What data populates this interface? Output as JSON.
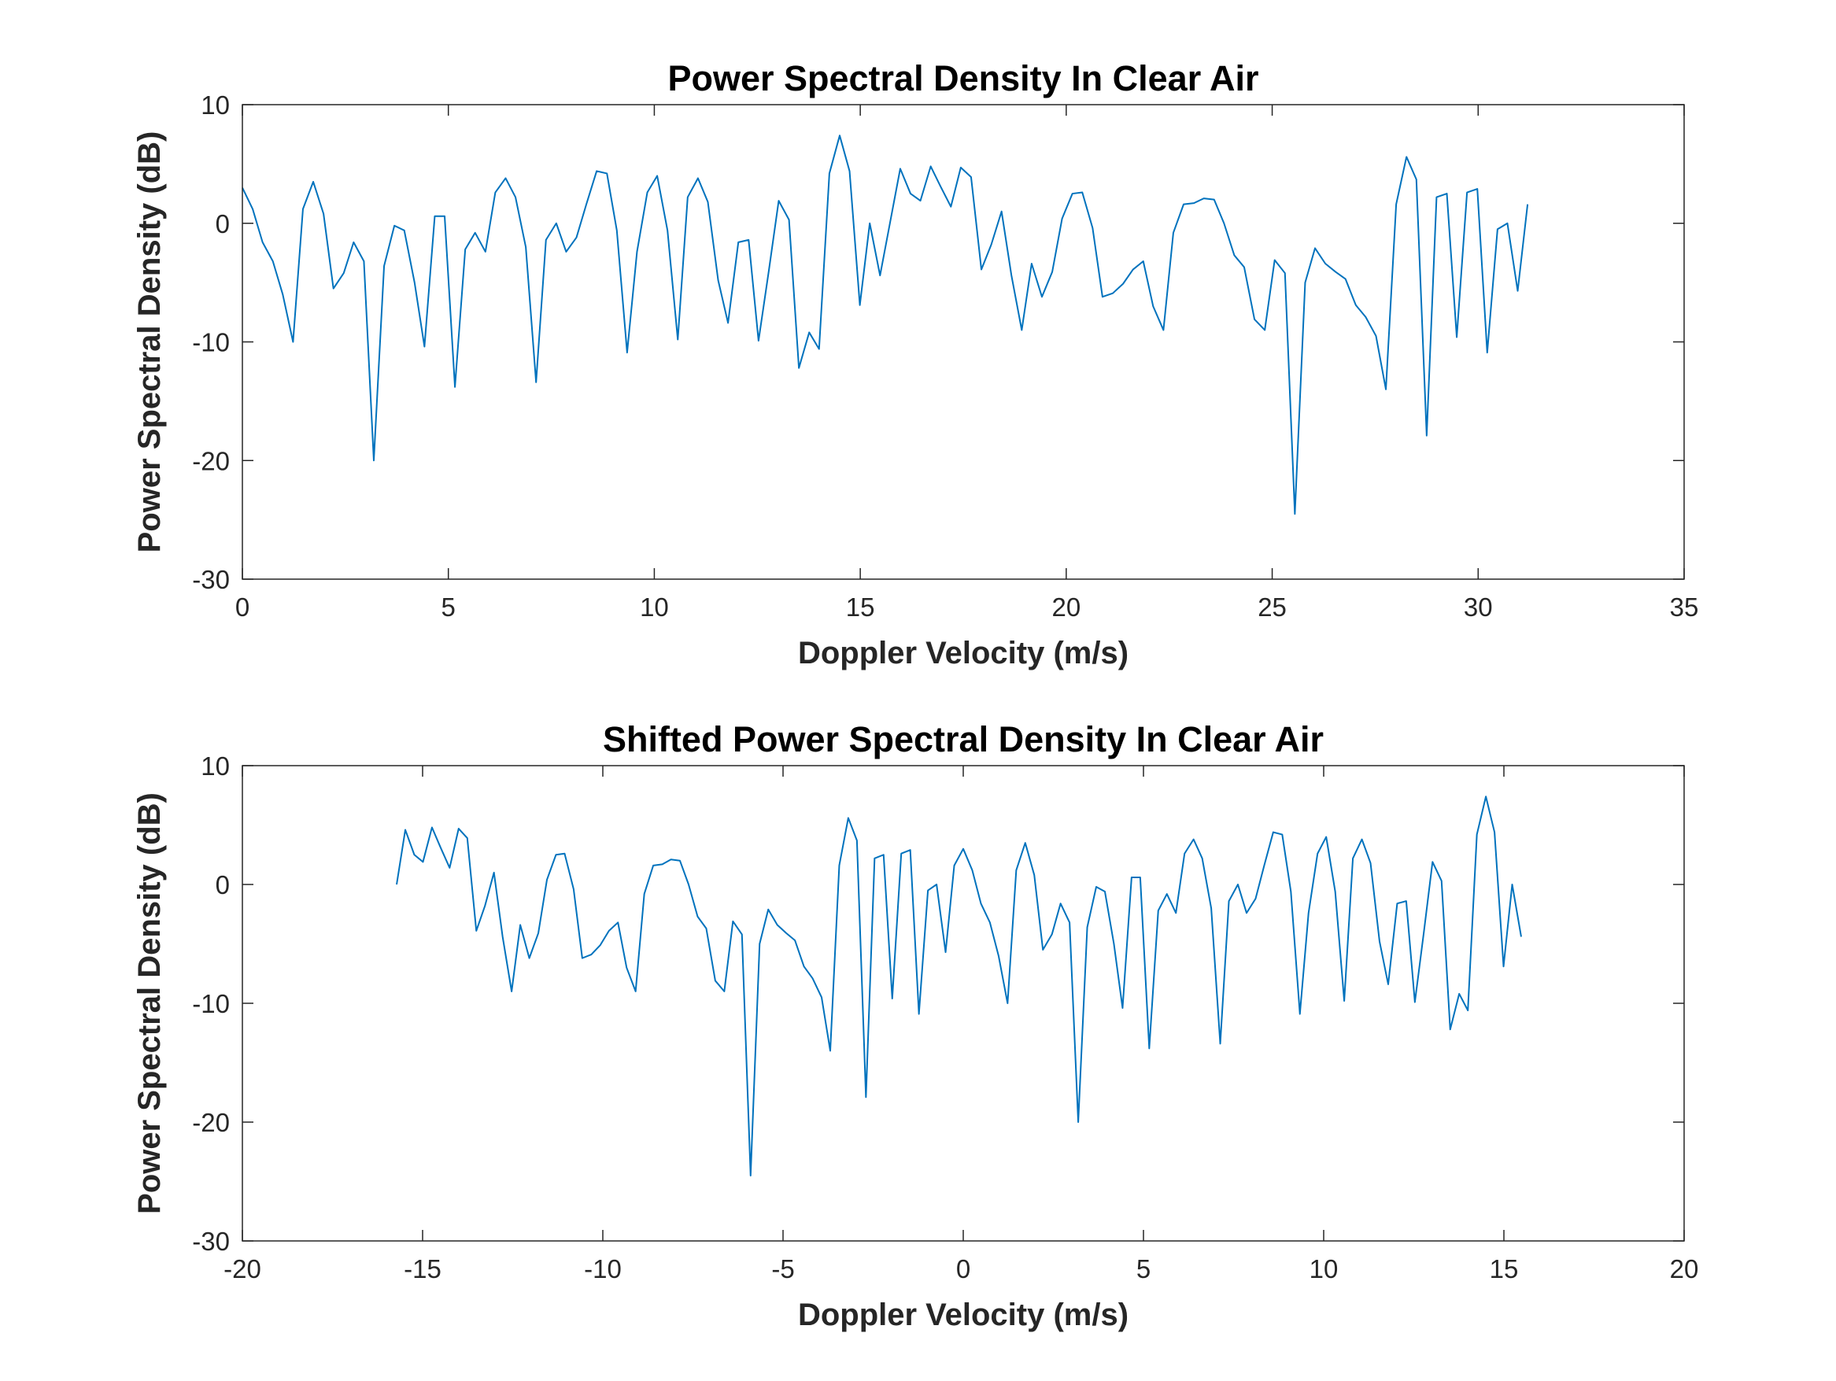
{
  "chart_data": [
    {
      "type": "line",
      "title": "Power Spectral Density In Clear Air",
      "x_label": "Doppler Velocity (m/s)",
      "y_label": "Power Spectral Density (dB)",
      "xlim": [
        0,
        35
      ],
      "ylim": [
        -30,
        10
      ],
      "xticks": [
        0,
        5,
        10,
        15,
        20,
        25,
        30,
        35
      ],
      "yticks": [
        -30,
        -20,
        -10,
        0,
        10
      ],
      "x": [
        0,
        0.25,
        0.49,
        0.74,
        0.98,
        1.23,
        1.47,
        1.72,
        1.97,
        2.21,
        2.46,
        2.7,
        2.95,
        3.19,
        3.44,
        3.69,
        3.93,
        4.18,
        4.42,
        4.67,
        4.91,
        5.16,
        5.41,
        5.65,
        5.9,
        6.14,
        6.39,
        6.63,
        6.88,
        7.13,
        7.37,
        7.62,
        7.86,
        8.11,
        8.35,
        8.6,
        8.85,
        9.09,
        9.34,
        9.58,
        9.83,
        10.07,
        10.32,
        10.57,
        10.81,
        11.06,
        11.3,
        11.55,
        11.79,
        12.04,
        12.29,
        12.53,
        12.78,
        13.02,
        13.27,
        13.51,
        13.76,
        14.0,
        14.25,
        14.5,
        14.74,
        14.99,
        15.23,
        15.48,
        15.72,
        15.97,
        16.22,
        16.46,
        16.71,
        16.95,
        17.2,
        17.44,
        17.69,
        17.94,
        18.18,
        18.43,
        18.67,
        18.92,
        19.16,
        19.41,
        19.66,
        19.9,
        20.15,
        20.39,
        20.64,
        20.88,
        21.13,
        21.38,
        21.62,
        21.87,
        22.11,
        22.36,
        22.6,
        22.85,
        23.1,
        23.34,
        23.59,
        23.83,
        24.08,
        24.32,
        24.57,
        24.82,
        25.06,
        25.31,
        25.55,
        25.8,
        26.04,
        26.29,
        26.54,
        26.78,
        27.03,
        27.27,
        27.52,
        27.76,
        28.01,
        28.26,
        28.5,
        28.75,
        28.99,
        29.24,
        29.48,
        29.73,
        29.98,
        30.22,
        30.47,
        30.71,
        30.96,
        31.2
      ],
      "series": [
        {
          "color": "#0072BD",
          "values": [
            3.0,
            1.2,
            -1.6,
            -3.2,
            -6,
            -10,
            1.2,
            3.5,
            0.8,
            -5.5,
            -4.2,
            -1.6,
            -3.2,
            -20,
            -3.6,
            -0.2,
            -0.6,
            -5,
            -10.4,
            0.6,
            0.6,
            -13.8,
            -2.2,
            -0.8,
            -2.4,
            2.6,
            3.8,
            2.2,
            -2,
            -13.4,
            -1.4,
            0,
            -2.4,
            -1.2,
            1.6,
            4.4,
            4.2,
            -0.6,
            -10.9,
            -2.4,
            2.6,
            4,
            -0.6,
            -9.8,
            2.2,
            3.8,
            1.8,
            -4.8,
            -8.4,
            -1.6,
            -1.4,
            -9.9,
            -4,
            1.9,
            0.3,
            -12.2,
            -9.2,
            -10.6,
            4.2,
            7.4,
            4.4,
            -6.9,
            0,
            -4.4,
            0,
            4.6,
            2.5,
            1.9,
            4.8,
            3.1,
            1.4,
            4.7,
            3.9,
            -3.9,
            -1.8,
            1,
            -4.4,
            -9,
            -3.4,
            -6.2,
            -4.1,
            0.4,
            2.5,
            2.6,
            -0.4,
            -6.2,
            -5.9,
            -5.1,
            -3.9,
            -3.2,
            -7,
            -9,
            -0.8,
            1.6,
            1.7,
            2.1,
            2,
            0,
            -2.7,
            -3.7,
            -8.1,
            -9,
            -3.1,
            -4.2,
            -24.5,
            -5,
            -2.1,
            -3.4,
            -4.1,
            -4.7,
            -6.9,
            -7.9,
            -9.5,
            -14,
            1.6,
            5.6,
            3.7,
            -17.9,
            2.2,
            2.5,
            -9.6,
            2.6,
            2.9,
            -10.9,
            -0.5,
            0,
            -5.7,
            1.6
          ]
        }
      ]
    },
    {
      "type": "line",
      "title": "Shifted Power Spectral Density In Clear Air",
      "x_label": "Doppler Velocity (m/s)",
      "y_label": "Power Spectral Density (dB)",
      "xlim": [
        -20,
        20
      ],
      "ylim": [
        -30,
        10
      ],
      "xticks": [
        -20,
        -15,
        -10,
        -5,
        0,
        5,
        10,
        15,
        20
      ],
      "yticks": [
        -30,
        -20,
        -10,
        0,
        10
      ],
      "x": [
        -15.72,
        -15.48,
        -15.23,
        -14.99,
        -14.74,
        -14.5,
        -14.25,
        -14.0,
        -13.76,
        -13.51,
        -13.27,
        -13.02,
        -12.78,
        -12.53,
        -12.29,
        -12.04,
        -11.79,
        -11.55,
        -11.3,
        -11.06,
        -10.81,
        -10.57,
        -10.32,
        -10.07,
        -9.83,
        -9.58,
        -9.34,
        -9.09,
        -8.85,
        -8.6,
        -8.35,
        -8.11,
        -7.86,
        -7.62,
        -7.37,
        -7.13,
        -6.88,
        -6.63,
        -6.39,
        -6.14,
        -5.9,
        -5.65,
        -5.41,
        -5.16,
        -4.91,
        -4.67,
        -4.42,
        -4.18,
        -3.93,
        -3.69,
        -3.44,
        -3.19,
        -2.95,
        -2.7,
        -2.46,
        -2.21,
        -1.97,
        -1.72,
        -1.47,
        -1.23,
        -0.98,
        -0.74,
        -0.49,
        -0.25,
        0,
        0.25,
        0.49,
        0.74,
        0.98,
        1.23,
        1.47,
        1.72,
        1.97,
        2.21,
        2.46,
        2.7,
        2.95,
        3.19,
        3.44,
        3.69,
        3.93,
        4.18,
        4.42,
        4.67,
        4.91,
        5.16,
        5.41,
        5.65,
        5.9,
        6.14,
        6.39,
        6.63,
        6.88,
        7.13,
        7.37,
        7.62,
        7.86,
        8.11,
        8.35,
        8.6,
        8.85,
        9.09,
        9.34,
        9.58,
        9.83,
        10.07,
        10.32,
        10.57,
        10.81,
        11.06,
        11.3,
        11.55,
        11.79,
        12.04,
        12.29,
        12.53,
        12.78,
        13.02,
        13.27,
        13.51,
        13.76,
        14.0,
        14.25,
        14.5,
        14.74,
        14.99,
        15.23,
        15.48
      ],
      "series": [
        {
          "color": "#0072BD",
          "values": [
            0,
            4.6,
            2.5,
            1.9,
            4.8,
            3.1,
            1.4,
            4.7,
            3.9,
            -3.9,
            -1.8,
            1,
            -4.4,
            -9,
            -3.4,
            -6.2,
            -4.1,
            0.4,
            2.5,
            2.6,
            -0.4,
            -6.2,
            -5.9,
            -5.1,
            -3.9,
            -3.2,
            -7,
            -9,
            -0.8,
            1.6,
            1.7,
            2.1,
            2,
            0,
            -2.7,
            -3.7,
            -8.1,
            -9,
            -3.1,
            -4.2,
            -24.5,
            -5,
            -2.1,
            -3.4,
            -4.1,
            -4.7,
            -6.9,
            -7.9,
            -9.5,
            -14,
            1.6,
            5.6,
            3.7,
            -17.9,
            2.2,
            2.5,
            -9.6,
            2.6,
            2.9,
            -10.9,
            -0.5,
            0,
            -5.7,
            1.6,
            3.0,
            1.2,
            -1.6,
            -3.2,
            -6,
            -10,
            1.2,
            3.5,
            0.8,
            -5.5,
            -4.2,
            -1.6,
            -3.2,
            -20,
            -3.6,
            -0.2,
            -0.6,
            -5,
            -10.4,
            0.6,
            0.6,
            -13.8,
            -2.2,
            -0.8,
            -2.4,
            2.6,
            3.8,
            2.2,
            -2,
            -13.4,
            -1.4,
            0,
            -2.4,
            -1.2,
            1.6,
            4.4,
            4.2,
            -0.6,
            -10.9,
            -2.4,
            2.6,
            4,
            -0.6,
            -9.8,
            2.2,
            3.8,
            1.8,
            -4.8,
            -8.4,
            -1.6,
            -1.4,
            -9.9,
            -4,
            1.9,
            0.3,
            -12.2,
            -9.2,
            -10.6,
            4.2,
            7.4,
            4.4,
            -6.9,
            0,
            -4.4
          ]
        }
      ]
    }
  ]
}
